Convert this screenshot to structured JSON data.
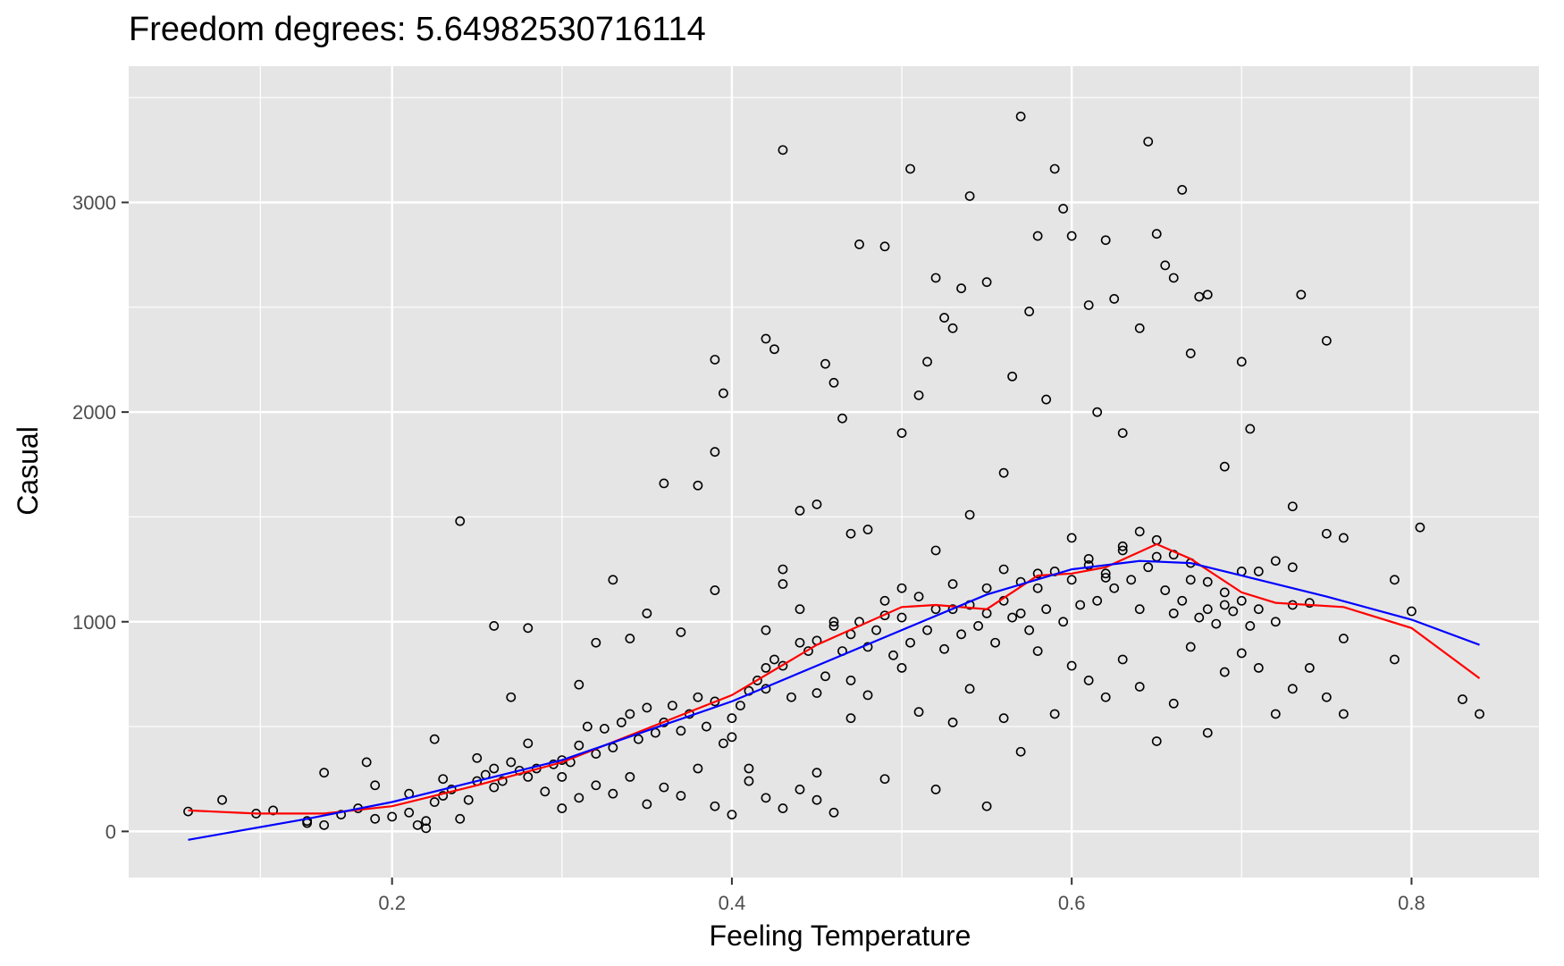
{
  "chart_data": {
    "type": "scatter",
    "title": "Freedom degrees: 5.64982530716114",
    "xlabel": "Feeling Temperature",
    "ylabel": "Casual",
    "xlim": [
      0.045,
      0.875
    ],
    "ylim": [
      -220,
      3650
    ],
    "x_ticks": [
      0.2,
      0.4,
      0.6,
      0.8
    ],
    "x_tick_labels": [
      "0.2",
      "0.4",
      "0.6",
      "0.8"
    ],
    "y_ticks": [
      0,
      1000,
      2000,
      3000
    ],
    "y_tick_labels": [
      "0",
      "1000",
      "2000",
      "3000"
    ],
    "grid": true,
    "legend": "none",
    "colors": {
      "panel": "#E5E5E5",
      "grid": "#FFFFFF",
      "points": "#000000",
      "smooth_spline": "#FF0000",
      "loess": "#0000FF"
    },
    "points": [
      [
        0.08,
        95
      ],
      [
        0.1,
        150
      ],
      [
        0.12,
        85
      ],
      [
        0.13,
        100
      ],
      [
        0.15,
        50
      ],
      [
        0.17,
        80
      ],
      [
        0.2,
        70
      ],
      [
        0.22,
        15
      ],
      [
        0.24,
        60
      ],
      [
        0.15,
        40
      ],
      [
        0.16,
        30
      ],
      [
        0.18,
        110
      ],
      [
        0.19,
        60
      ],
      [
        0.21,
        180
      ],
      [
        0.23,
        250
      ],
      [
        0.25,
        350
      ],
      [
        0.26,
        300
      ],
      [
        0.28,
        420
      ],
      [
        0.16,
        280
      ],
      [
        0.185,
        330
      ],
      [
        0.19,
        220
      ],
      [
        0.225,
        440
      ],
      [
        0.24,
        1480
      ],
      [
        0.26,
        980
      ],
      [
        0.28,
        970
      ],
      [
        0.27,
        640
      ],
      [
        0.3,
        260
      ],
      [
        0.31,
        700
      ],
      [
        0.32,
        900
      ],
      [
        0.33,
        1200
      ],
      [
        0.34,
        920
      ],
      [
        0.35,
        1040
      ],
      [
        0.36,
        1660
      ],
      [
        0.37,
        950
      ],
      [
        0.38,
        1650
      ],
      [
        0.39,
        1150
      ],
      [
        0.39,
        2250
      ],
      [
        0.395,
        2090
      ],
      [
        0.39,
        1810
      ],
      [
        0.42,
        2350
      ],
      [
        0.425,
        2300
      ],
      [
        0.43,
        3250
      ],
      [
        0.4,
        450
      ],
      [
        0.41,
        300
      ],
      [
        0.42,
        780
      ],
      [
        0.43,
        1250
      ],
      [
        0.44,
        1530
      ],
      [
        0.45,
        1560
      ],
      [
        0.455,
        2230
      ],
      [
        0.46,
        2140
      ],
      [
        0.465,
        1970
      ],
      [
        0.47,
        1420
      ],
      [
        0.475,
        2800
      ],
      [
        0.49,
        2790
      ],
      [
        0.49,
        1030
      ],
      [
        0.5,
        1900
      ],
      [
        0.505,
        3160
      ],
      [
        0.51,
        2080
      ],
      [
        0.515,
        2240
      ],
      [
        0.52,
        2640
      ],
      [
        0.525,
        2450
      ],
      [
        0.53,
        2400
      ],
      [
        0.535,
        2590
      ],
      [
        0.54,
        3030
      ],
      [
        0.55,
        2620
      ],
      [
        0.56,
        1710
      ],
      [
        0.565,
        2170
      ],
      [
        0.57,
        3410
      ],
      [
        0.575,
        2480
      ],
      [
        0.58,
        2840
      ],
      [
        0.585,
        2060
      ],
      [
        0.59,
        3160
      ],
      [
        0.595,
        2970
      ],
      [
        0.6,
        2840
      ],
      [
        0.61,
        2510
      ],
      [
        0.615,
        2000
      ],
      [
        0.62,
        2820
      ],
      [
        0.625,
        2540
      ],
      [
        0.63,
        1900
      ],
      [
        0.64,
        2400
      ],
      [
        0.645,
        3290
      ],
      [
        0.65,
        2850
      ],
      [
        0.655,
        2700
      ],
      [
        0.66,
        2640
      ],
      [
        0.665,
        3060
      ],
      [
        0.67,
        2280
      ],
      [
        0.675,
        2550
      ],
      [
        0.68,
        2560
      ],
      [
        0.69,
        1740
      ],
      [
        0.7,
        2240
      ],
      [
        0.705,
        1920
      ],
      [
        0.73,
        1550
      ],
      [
        0.735,
        2560
      ],
      [
        0.75,
        2340
      ],
      [
        0.75,
        1420
      ],
      [
        0.76,
        1400
      ],
      [
        0.79,
        1200
      ],
      [
        0.805,
        1450
      ],
      [
        0.45,
        280
      ],
      [
        0.46,
        90
      ],
      [
        0.47,
        540
      ],
      [
        0.48,
        650
      ],
      [
        0.49,
        250
      ],
      [
        0.5,
        780
      ],
      [
        0.51,
        570
      ],
      [
        0.52,
        200
      ],
      [
        0.53,
        520
      ],
      [
        0.54,
        680
      ],
      [
        0.55,
        120
      ],
      [
        0.56,
        540
      ],
      [
        0.57,
        380
      ],
      [
        0.58,
        860
      ],
      [
        0.59,
        560
      ],
      [
        0.6,
        790
      ],
      [
        0.61,
        720
      ],
      [
        0.62,
        640
      ],
      [
        0.63,
        820
      ],
      [
        0.64,
        690
      ],
      [
        0.65,
        430
      ],
      [
        0.66,
        610
      ],
      [
        0.67,
        880
      ],
      [
        0.68,
        470
      ],
      [
        0.69,
        760
      ],
      [
        0.7,
        850
      ],
      [
        0.71,
        780
      ],
      [
        0.72,
        560
      ],
      [
        0.73,
        680
      ],
      [
        0.74,
        780
      ],
      [
        0.75,
        640
      ],
      [
        0.76,
        560
      ],
      [
        0.79,
        820
      ],
      [
        0.8,
        1050
      ],
      [
        0.83,
        630
      ],
      [
        0.84,
        560
      ],
      [
        0.42,
        960
      ],
      [
        0.43,
        1180
      ],
      [
        0.44,
        1060
      ],
      [
        0.45,
        660
      ],
      [
        0.46,
        1000
      ],
      [
        0.47,
        720
      ],
      [
        0.48,
        1440
      ],
      [
        0.5,
        1160
      ],
      [
        0.52,
        1340
      ],
      [
        0.53,
        1060
      ],
      [
        0.54,
        1510
      ],
      [
        0.55,
        1040
      ],
      [
        0.56,
        1250
      ],
      [
        0.57,
        1040
      ],
      [
        0.58,
        1230
      ],
      [
        0.6,
        1400
      ],
      [
        0.61,
        1270
      ],
      [
        0.62,
        1230
      ],
      [
        0.63,
        1340
      ],
      [
        0.64,
        1060
      ],
      [
        0.65,
        1310
      ],
      [
        0.66,
        1040
      ],
      [
        0.67,
        1200
      ],
      [
        0.68,
        1060
      ],
      [
        0.69,
        1080
      ],
      [
        0.7,
        1240
      ],
      [
        0.71,
        1240
      ],
      [
        0.72,
        1290
      ],
      [
        0.73,
        1260
      ],
      [
        0.74,
        1090
      ],
      [
        0.76,
        920
      ],
      [
        0.21,
        90
      ],
      [
        0.215,
        30
      ],
      [
        0.22,
        50
      ],
      [
        0.225,
        140
      ],
      [
        0.23,
        170
      ],
      [
        0.235,
        200
      ],
      [
        0.245,
        150
      ],
      [
        0.25,
        240
      ],
      [
        0.255,
        270
      ],
      [
        0.26,
        210
      ],
      [
        0.265,
        240
      ],
      [
        0.27,
        330
      ],
      [
        0.275,
        290
      ],
      [
        0.28,
        260
      ],
      [
        0.285,
        300
      ],
      [
        0.29,
        190
      ],
      [
        0.295,
        320
      ],
      [
        0.3,
        340
      ],
      [
        0.305,
        330
      ],
      [
        0.31,
        410
      ],
      [
        0.315,
        500
      ],
      [
        0.32,
        370
      ],
      [
        0.325,
        490
      ],
      [
        0.33,
        400
      ],
      [
        0.335,
        520
      ],
      [
        0.34,
        560
      ],
      [
        0.345,
        440
      ],
      [
        0.35,
        590
      ],
      [
        0.355,
        470
      ],
      [
        0.36,
        520
      ],
      [
        0.365,
        600
      ],
      [
        0.37,
        480
      ],
      [
        0.375,
        560
      ],
      [
        0.38,
        640
      ],
      [
        0.385,
        500
      ],
      [
        0.39,
        620
      ],
      [
        0.395,
        420
      ],
      [
        0.4,
        540
      ],
      [
        0.405,
        600
      ],
      [
        0.41,
        670
      ],
      [
        0.415,
        720
      ],
      [
        0.42,
        680
      ],
      [
        0.425,
        820
      ],
      [
        0.43,
        790
      ],
      [
        0.435,
        640
      ],
      [
        0.44,
        900
      ],
      [
        0.445,
        860
      ],
      [
        0.45,
        910
      ],
      [
        0.455,
        740
      ],
      [
        0.46,
        980
      ],
      [
        0.465,
        860
      ],
      [
        0.47,
        940
      ],
      [
        0.475,
        1000
      ],
      [
        0.48,
        880
      ],
      [
        0.485,
        960
      ],
      [
        0.49,
        1100
      ],
      [
        0.495,
        840
      ],
      [
        0.5,
        1020
      ],
      [
        0.505,
        900
      ],
      [
        0.51,
        1120
      ],
      [
        0.515,
        960
      ],
      [
        0.52,
        1060
      ],
      [
        0.525,
        870
      ],
      [
        0.53,
        1180
      ],
      [
        0.535,
        940
      ],
      [
        0.54,
        1080
      ],
      [
        0.545,
        980
      ],
      [
        0.55,
        1160
      ],
      [
        0.555,
        900
      ],
      [
        0.56,
        1100
      ],
      [
        0.565,
        1020
      ],
      [
        0.57,
        1190
      ],
      [
        0.575,
        960
      ],
      [
        0.58,
        1160
      ],
      [
        0.585,
        1060
      ],
      [
        0.59,
        1240
      ],
      [
        0.595,
        1000
      ],
      [
        0.6,
        1200
      ],
      [
        0.605,
        1080
      ],
      [
        0.61,
        1300
      ],
      [
        0.615,
        1100
      ],
      [
        0.62,
        1210
      ],
      [
        0.625,
        1160
      ],
      [
        0.63,
        1360
      ],
      [
        0.635,
        1200
      ],
      [
        0.64,
        1430
      ],
      [
        0.645,
        1260
      ],
      [
        0.65,
        1390
      ],
      [
        0.655,
        1150
      ],
      [
        0.66,
        1320
      ],
      [
        0.665,
        1100
      ],
      [
        0.67,
        1280
      ],
      [
        0.675,
        1020
      ],
      [
        0.68,
        1190
      ],
      [
        0.685,
        990
      ],
      [
        0.69,
        1140
      ],
      [
        0.695,
        1050
      ],
      [
        0.7,
        1100
      ],
      [
        0.705,
        980
      ],
      [
        0.71,
        1060
      ],
      [
        0.72,
        1000
      ],
      [
        0.73,
        1080
      ],
      [
        0.3,
        110
      ],
      [
        0.31,
        160
      ],
      [
        0.32,
        220
      ],
      [
        0.33,
        180
      ],
      [
        0.34,
        260
      ],
      [
        0.35,
        130
      ],
      [
        0.36,
        210
      ],
      [
        0.37,
        170
      ],
      [
        0.38,
        300
      ],
      [
        0.39,
        120
      ],
      [
        0.4,
        80
      ],
      [
        0.41,
        240
      ],
      [
        0.42,
        160
      ],
      [
        0.43,
        110
      ],
      [
        0.44,
        200
      ],
      [
        0.45,
        150
      ]
    ],
    "smooth_spline_curve": [
      [
        0.08,
        100
      ],
      [
        0.12,
        85
      ],
      [
        0.16,
        85
      ],
      [
        0.2,
        120
      ],
      [
        0.25,
        220
      ],
      [
        0.3,
        330
      ],
      [
        0.35,
        490
      ],
      [
        0.4,
        650
      ],
      [
        0.45,
        890
      ],
      [
        0.5,
        1070
      ],
      [
        0.52,
        1080
      ],
      [
        0.55,
        1060
      ],
      [
        0.58,
        1220
      ],
      [
        0.6,
        1230
      ],
      [
        0.62,
        1260
      ],
      [
        0.65,
        1370
      ],
      [
        0.67,
        1300
      ],
      [
        0.7,
        1140
      ],
      [
        0.72,
        1090
      ],
      [
        0.76,
        1070
      ],
      [
        0.8,
        970
      ],
      [
        0.84,
        730
      ]
    ],
    "loess_curve": [
      [
        0.08,
        -40
      ],
      [
        0.15,
        60
      ],
      [
        0.2,
        140
      ],
      [
        0.3,
        340
      ],
      [
        0.4,
        620
      ],
      [
        0.5,
        960
      ],
      [
        0.55,
        1130
      ],
      [
        0.6,
        1250
      ],
      [
        0.64,
        1290
      ],
      [
        0.67,
        1280
      ],
      [
        0.7,
        1220
      ],
      [
        0.75,
        1120
      ],
      [
        0.8,
        1010
      ],
      [
        0.84,
        890
      ]
    ]
  }
}
